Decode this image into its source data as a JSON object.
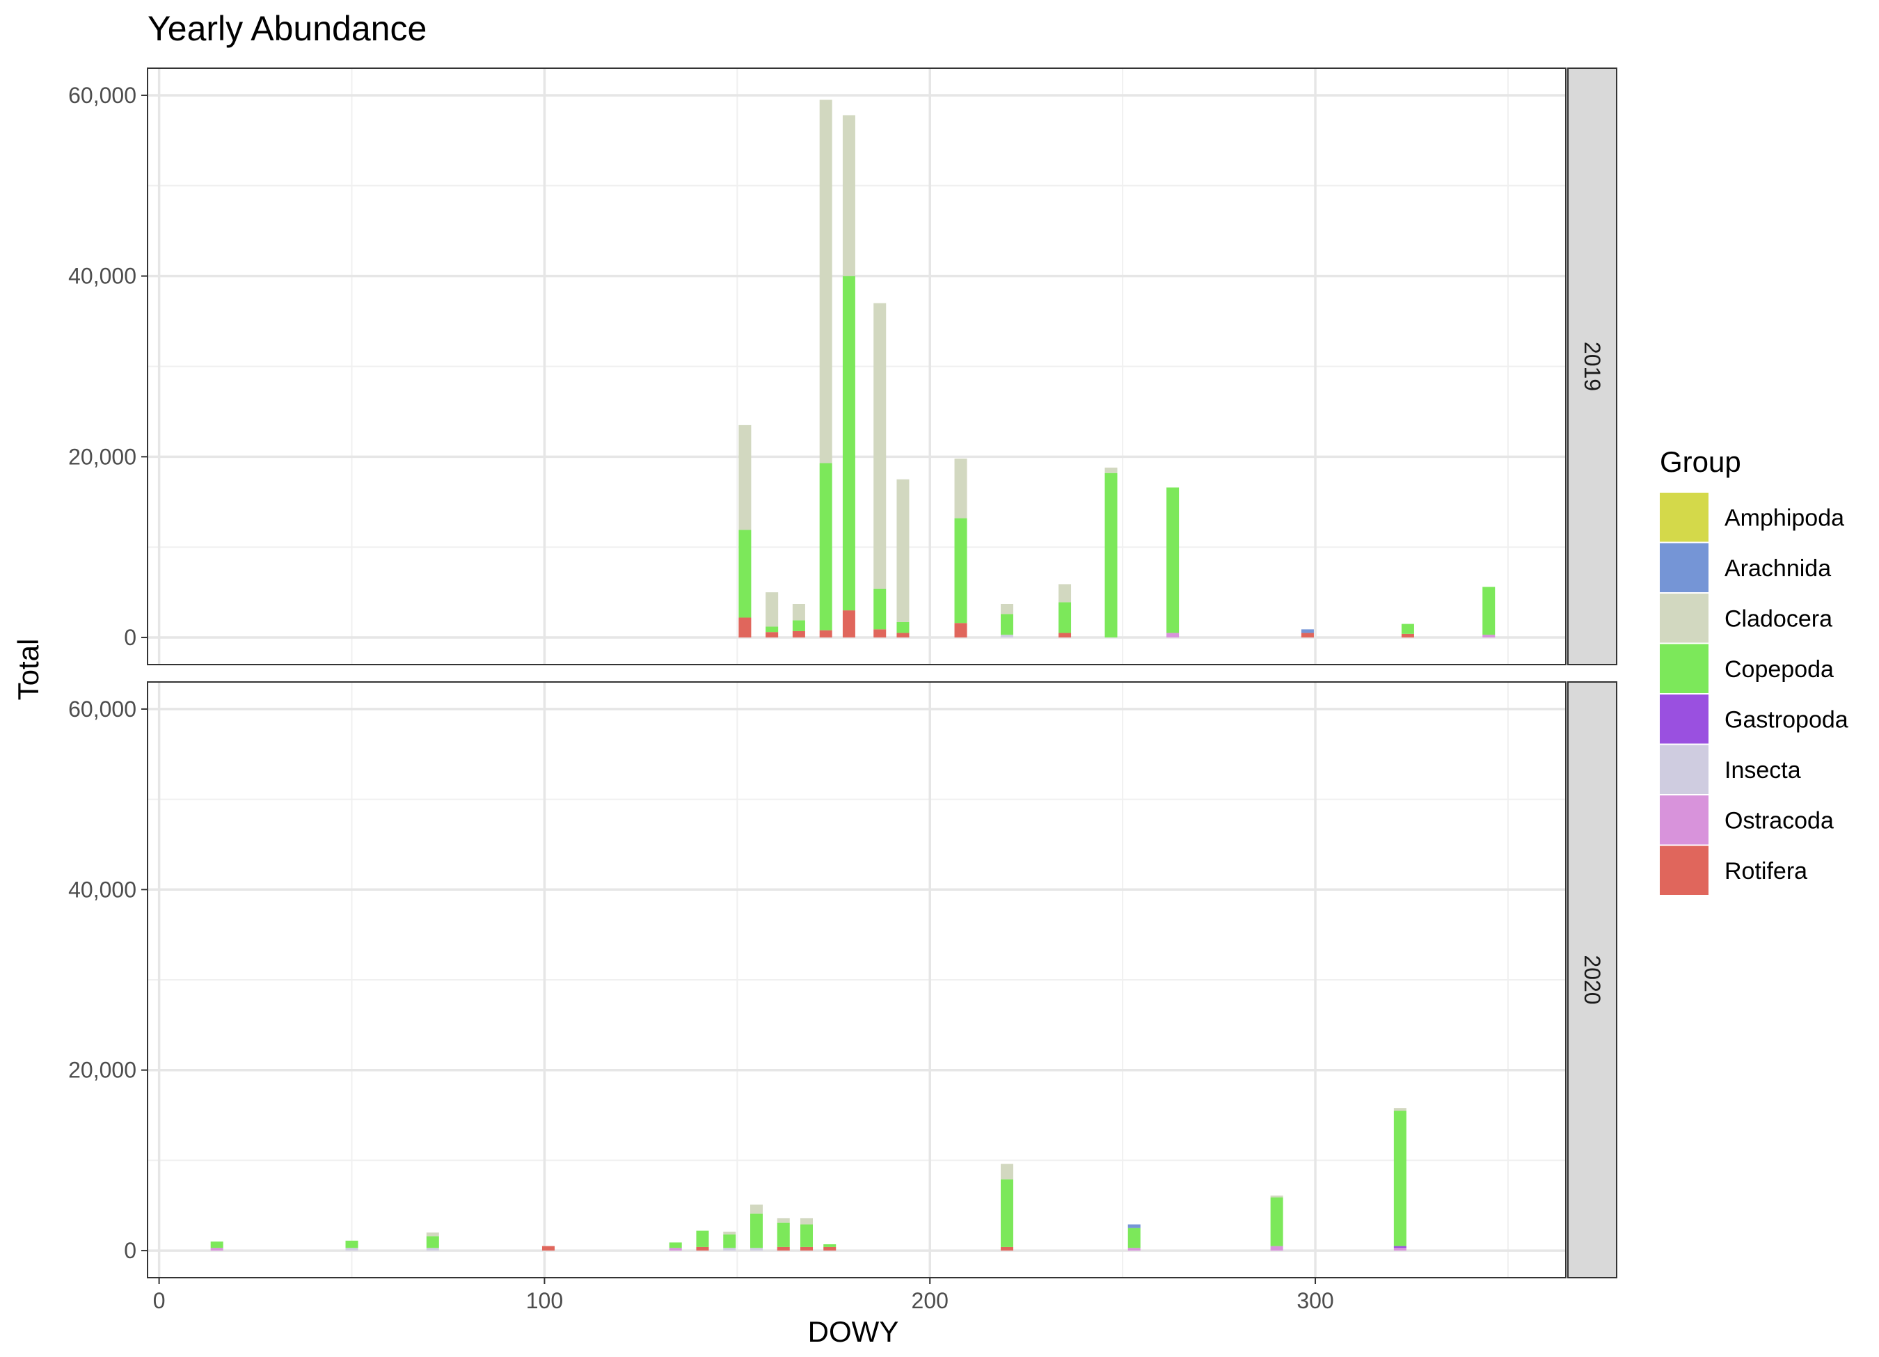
{
  "chart_data": {
    "type": "bar",
    "stacked": true,
    "faceted": true,
    "title": "Yearly Abundance",
    "xlabel": "DOWY",
    "ylabel": "Total",
    "xlim": [
      -3,
      365
    ],
    "ylim": [
      -3000,
      63000
    ],
    "x_ticks": [
      0,
      100,
      200,
      300
    ],
    "x_tick_labels": [
      "0",
      "100",
      "200",
      "300"
    ],
    "y_ticks": [
      0,
      20000,
      40000,
      60000
    ],
    "y_tick_labels": [
      "0",
      "20,000",
      "40,000",
      "60,000"
    ],
    "grid": true,
    "legend": {
      "title": "Group",
      "placement": "right",
      "entries": [
        {
          "name": "Amphipoda",
          "color": "#D4D94A"
        },
        {
          "name": "Arachnida",
          "color": "#7595D6"
        },
        {
          "name": "Cladocera",
          "color": "#D2D8C0"
        },
        {
          "name": "Copepoda",
          "color": "#7CE85A"
        },
        {
          "name": "Gastropoda",
          "color": "#9A50E0"
        },
        {
          "name": "Insecta",
          "color": "#CFCCE0"
        },
        {
          "name": "Ostracoda",
          "color": "#D893DB"
        },
        {
          "name": "Rotifera",
          "color": "#E0665C"
        }
      ]
    },
    "facets": [
      {
        "label": "2019",
        "bars": [
          {
            "x": 152,
            "values": {
              "Rotifera": 2200,
              "Copepoda": 9700,
              "Cladocera": 11600
            }
          },
          {
            "x": 159,
            "values": {
              "Rotifera": 600,
              "Copepoda": 600,
              "Cladocera": 3800
            }
          },
          {
            "x": 166,
            "values": {
              "Rotifera": 700,
              "Copepoda": 1200,
              "Cladocera": 1800
            }
          },
          {
            "x": 173,
            "values": {
              "Rotifera": 800,
              "Copepoda": 18500,
              "Cladocera": 40200
            }
          },
          {
            "x": 179,
            "values": {
              "Rotifera": 3000,
              "Copepoda": 37000,
              "Cladocera": 17800
            }
          },
          {
            "x": 187,
            "values": {
              "Rotifera": 900,
              "Copepoda": 4500,
              "Cladocera": 31600
            }
          },
          {
            "x": 193,
            "values": {
              "Rotifera": 500,
              "Copepoda": 1200,
              "Cladocera": 15800
            }
          },
          {
            "x": 208,
            "values": {
              "Rotifera": 1600,
              "Copepoda": 11600,
              "Cladocera": 6600
            }
          },
          {
            "x": 220,
            "values": {
              "Insecta": 300,
              "Copepoda": 2300,
              "Cladocera": 1100
            }
          },
          {
            "x": 235,
            "values": {
              "Rotifera": 500,
              "Copepoda": 3400,
              "Cladocera": 2000
            }
          },
          {
            "x": 247,
            "values": {
              "Copepoda": 18200,
              "Cladocera": 600
            }
          },
          {
            "x": 263,
            "values": {
              "Ostracoda": 500,
              "Copepoda": 16100
            }
          },
          {
            "x": 298,
            "values": {
              "Rotifera": 500,
              "Arachnida": 400
            }
          },
          {
            "x": 324,
            "values": {
              "Rotifera": 400,
              "Copepoda": 1100
            }
          },
          {
            "x": 345,
            "values": {
              "Ostracoda": 300,
              "Copepoda": 5300
            }
          }
        ]
      },
      {
        "label": "2020",
        "bars": [
          {
            "x": 15,
            "values": {
              "Ostracoda": 300,
              "Copepoda": 700
            }
          },
          {
            "x": 50,
            "values": {
              "Insecta": 300,
              "Copepoda": 800
            }
          },
          {
            "x": 71,
            "values": {
              "Insecta": 300,
              "Copepoda": 1300,
              "Cladocera": 400
            }
          },
          {
            "x": 101,
            "values": {
              "Rotifera": 500
            }
          },
          {
            "x": 134,
            "values": {
              "Ostracoda": 300,
              "Copepoda": 600
            }
          },
          {
            "x": 141,
            "values": {
              "Rotifera": 400,
              "Copepoda": 1800
            }
          },
          {
            "x": 148,
            "values": {
              "Insecta": 300,
              "Copepoda": 1500,
              "Cladocera": 300
            }
          },
          {
            "x": 155,
            "values": {
              "Insecta": 300,
              "Copepoda": 3800,
              "Cladocera": 1000
            }
          },
          {
            "x": 162,
            "values": {
              "Rotifera": 400,
              "Copepoda": 2700,
              "Cladocera": 500
            }
          },
          {
            "x": 168,
            "values": {
              "Rotifera": 400,
              "Copepoda": 2500,
              "Cladocera": 700
            }
          },
          {
            "x": 174,
            "values": {
              "Rotifera": 400,
              "Copepoda": 300
            }
          },
          {
            "x": 220,
            "values": {
              "Rotifera": 400,
              "Copepoda": 7500,
              "Cladocera": 1700
            }
          },
          {
            "x": 253,
            "values": {
              "Ostracoda": 300,
              "Copepoda": 2200,
              "Arachnida": 400
            }
          },
          {
            "x": 290,
            "values": {
              "Ostracoda": 500,
              "Copepoda": 5400,
              "Cladocera": 200
            }
          },
          {
            "x": 322,
            "values": {
              "Ostracoda": 300,
              "Gastropoda": 200,
              "Copepoda": 15000,
              "Cladocera": 300
            }
          }
        ]
      }
    ]
  }
}
